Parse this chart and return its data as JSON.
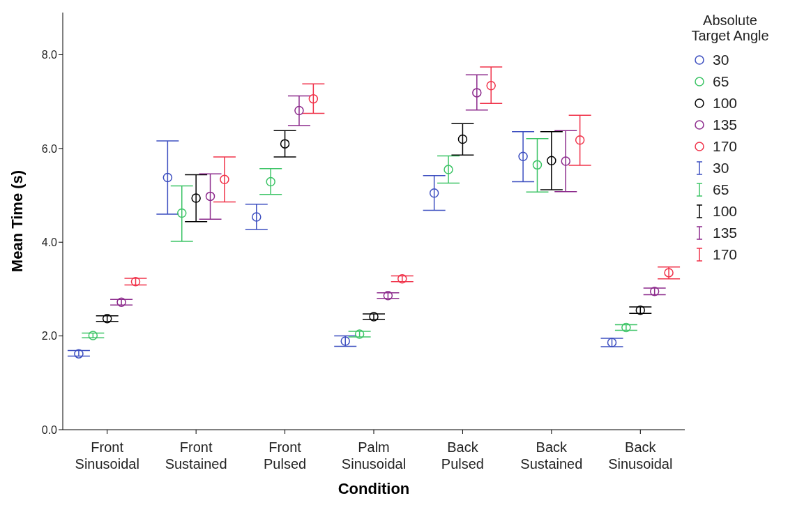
{
  "chart_data": {
    "type": "scatter",
    "xlabel": "Condition",
    "ylabel": "Mean Time (s)",
    "legend_title": "Absolute Target Angle",
    "legend": "right",
    "marker": "circle",
    "grid": false,
    "categories": [
      "Front Sinusoidal",
      "Front Sustained",
      "Front Pulsed",
      "Palm Sinusoidal",
      "Back Pulsed",
      "Back Sustained",
      "Back Sinusoidal"
    ],
    "ylim": [
      0,
      8.9
    ],
    "yticks": [
      {
        "value": 0,
        "label": "0.0"
      },
      {
        "value": 2,
        "label": "2.0"
      },
      {
        "value": 4,
        "label": "4.0"
      },
      {
        "value": 6,
        "label": "6.0"
      },
      {
        "value": 8,
        "label": "8.0"
      }
    ],
    "series": [
      {
        "name": "30",
        "color": "#3d4fc0",
        "values": [
          1.62,
          5.38,
          4.54,
          1.89,
          5.05,
          5.83,
          1.86
        ],
        "errors": [
          [
            1.57,
            1.69
          ],
          [
            4.6,
            6.16
          ],
          [
            4.27,
            4.81
          ],
          [
            1.78,
            2.0
          ],
          [
            4.68,
            5.42
          ],
          [
            5.29,
            6.36
          ],
          [
            1.77,
            1.95
          ]
        ]
      },
      {
        "name": "65",
        "color": "#3cc466",
        "values": [
          2.01,
          4.62,
          5.29,
          2.04,
          5.55,
          5.65,
          2.18
        ],
        "errors": [
          [
            1.96,
            2.06
          ],
          [
            4.02,
            5.2
          ],
          [
            5.02,
            5.57
          ],
          [
            1.98,
            2.1
          ],
          [
            5.26,
            5.84
          ],
          [
            5.07,
            6.21
          ],
          [
            2.12,
            2.24
          ]
        ]
      },
      {
        "name": "100",
        "color": "#000000",
        "values": [
          2.37,
          4.94,
          6.1,
          2.41,
          6.2,
          5.74,
          2.55
        ],
        "errors": [
          [
            2.31,
            2.43
          ],
          [
            4.44,
            5.44
          ],
          [
            5.82,
            6.38
          ],
          [
            2.35,
            2.47
          ],
          [
            5.86,
            6.53
          ],
          [
            5.12,
            6.36
          ],
          [
            2.48,
            2.62
          ]
        ]
      },
      {
        "name": "135",
        "color": "#8c2a8c",
        "values": [
          2.72,
          4.98,
          6.81,
          2.86,
          7.19,
          5.73,
          2.95
        ],
        "errors": [
          [
            2.66,
            2.78
          ],
          [
            4.49,
            5.46
          ],
          [
            6.49,
            7.12
          ],
          [
            2.8,
            2.92
          ],
          [
            6.82,
            7.57
          ],
          [
            5.08,
            6.38
          ],
          [
            2.88,
            3.02
          ]
        ]
      },
      {
        "name": "170",
        "color": "#f0334a",
        "values": [
          3.16,
          5.34,
          7.06,
          3.22,
          7.34,
          6.18,
          3.35
        ],
        "errors": [
          [
            3.09,
            3.23
          ],
          [
            4.86,
            5.82
          ],
          [
            6.75,
            7.38
          ],
          [
            3.16,
            3.28
          ],
          [
            6.96,
            7.74
          ],
          [
            5.64,
            6.71
          ],
          [
            3.22,
            3.47
          ]
        ]
      }
    ]
  }
}
